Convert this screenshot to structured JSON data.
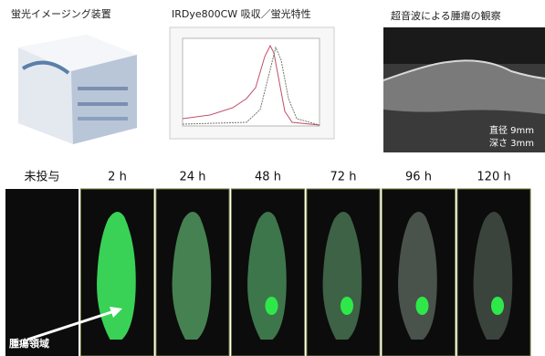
{
  "top_panels": {
    "device": "蛍光イメージング装置",
    "spectrum": "IRDye800CW 吸収／蛍光特性",
    "ultrasound": "超音波による腫瘍の観察"
  },
  "ultrasound_labels": [
    "直径 9mm",
    "深さ 3mm"
  ],
  "time_points": [
    "未投与",
    "2 h",
    "24 h",
    "48 h",
    "72 h",
    "96 h",
    "120 h"
  ],
  "annotation": "腫瘍領域"
}
